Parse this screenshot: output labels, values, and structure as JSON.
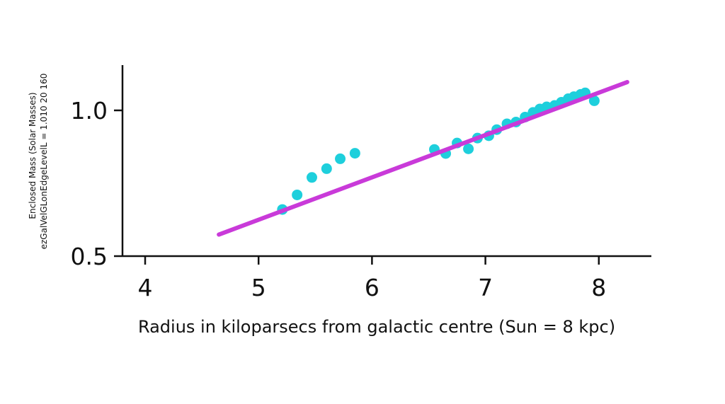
{
  "chart_data": {
    "type": "scatter",
    "title": "",
    "xlabel": "Radius in kiloparsecs from galactic centre (Sun = 8 kpc)",
    "ylabel": "Enclosed Mass (Solar Masses)",
    "ylabel_line2": "ezGalVelGLonEdgeLevelL = 1.010  20  160",
    "xlim": [
      3.8,
      8.5
    ],
    "ylim": [
      0.5,
      1.15
    ],
    "x_ticks": [
      4,
      5,
      6,
      7,
      8
    ],
    "x_tick_labels": [
      "4",
      "5",
      "6",
      "7",
      "8"
    ],
    "y_ticks": [
      0.5,
      1.0
    ],
    "y_tick_labels": [
      "0.5",
      "1.0"
    ],
    "grid": false,
    "series": [
      {
        "kind": "points",
        "color": "#1ecfdc",
        "x": [
          5.21,
          5.34,
          5.47,
          5.6,
          5.72,
          5.85,
          6.55,
          6.65,
          6.75,
          6.85,
          6.93,
          7.03,
          7.1,
          7.19,
          7.27,
          7.35,
          7.42,
          7.48,
          7.54,
          7.61,
          7.67,
          7.73,
          7.78,
          7.84,
          7.88,
          7.96
        ],
        "y": [
          0.66,
          0.71,
          0.77,
          0.8,
          0.834,
          0.853,
          0.866,
          0.852,
          0.888,
          0.868,
          0.905,
          0.913,
          0.934,
          0.954,
          0.96,
          0.977,
          0.993,
          1.005,
          1.012,
          1.017,
          1.028,
          1.04,
          1.047,
          1.055,
          1.06,
          1.033
        ]
      },
      {
        "kind": "fit-line",
        "color": "#c93ad9",
        "x": [
          4.65,
          8.25
        ],
        "y": [
          0.574,
          1.097
        ]
      }
    ]
  }
}
